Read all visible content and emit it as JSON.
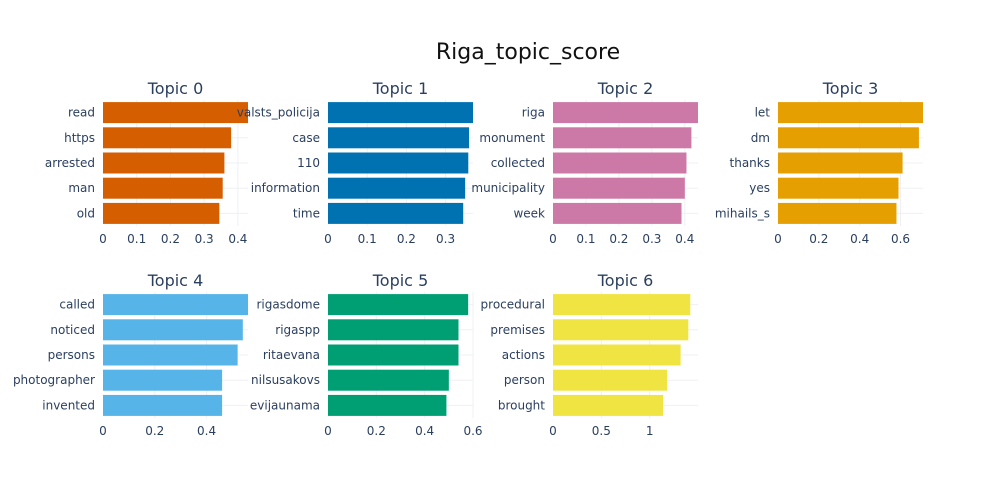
{
  "title": "Riga_topic_score",
  "chart_data": [
    {
      "type": "bar",
      "orientation": "horizontal",
      "title": "Topic 0",
      "color": "#D55E00",
      "categories": [
        "read",
        "https",
        "arrested",
        "man",
        "old"
      ],
      "values": [
        0.43,
        0.38,
        0.36,
        0.355,
        0.345
      ],
      "xlim": [
        0,
        0.43
      ],
      "xticks": [
        0,
        0.1,
        0.2,
        0.3,
        0.4
      ],
      "xtick_labels": [
        "0",
        "0.1",
        "0.2",
        "0.3",
        "0.4"
      ],
      "grid": true
    },
    {
      "type": "bar",
      "orientation": "horizontal",
      "title": "Topic 1",
      "color": "#0072B2",
      "categories": [
        "valsts_policija",
        "case",
        "110",
        "information",
        "time"
      ],
      "values": [
        0.37,
        0.36,
        0.358,
        0.35,
        0.345
      ],
      "xlim": [
        0,
        0.37
      ],
      "xticks": [
        0,
        0.1,
        0.2,
        0.3
      ],
      "xtick_labels": [
        "0",
        "0.1",
        "0.2",
        "0.3"
      ],
      "grid": true
    },
    {
      "type": "bar",
      "orientation": "horizontal",
      "title": "Topic 2",
      "color": "#CC79A7",
      "categories": [
        "riga",
        "monument",
        "collected",
        "municipality",
        "week"
      ],
      "values": [
        0.44,
        0.42,
        0.405,
        0.4,
        0.39
      ],
      "xlim": [
        0,
        0.44
      ],
      "xticks": [
        0,
        0.1,
        0.2,
        0.3,
        0.4
      ],
      "xtick_labels": [
        "0",
        "0.1",
        "0.2",
        "0.3",
        "0.4"
      ],
      "grid": true
    },
    {
      "type": "bar",
      "orientation": "horizontal",
      "title": "Topic 3",
      "color": "#E69F00",
      "categories": [
        "let",
        "dm",
        "thanks",
        "yes",
        "mihails_s"
      ],
      "values": [
        0.71,
        0.69,
        0.61,
        0.59,
        0.58
      ],
      "xlim": [
        0,
        0.71
      ],
      "xticks": [
        0,
        0.2,
        0.4,
        0.6
      ],
      "xtick_labels": [
        "0",
        "0.2",
        "0.4",
        "0.6"
      ],
      "grid": true
    },
    {
      "type": "bar",
      "orientation": "horizontal",
      "title": "Topic 4",
      "color": "#56B4E9",
      "categories": [
        "called",
        "noticed",
        "persons",
        "photographer",
        "invented"
      ],
      "values": [
        0.56,
        0.54,
        0.52,
        0.46,
        0.46
      ],
      "xlim": [
        0,
        0.56
      ],
      "xticks": [
        0,
        0.2,
        0.4
      ],
      "xtick_labels": [
        "0",
        "0.2",
        "0.4"
      ],
      "grid": true
    },
    {
      "type": "bar",
      "orientation": "horizontal",
      "title": "Topic 5",
      "color": "#009E73",
      "categories": [
        "rigasdome",
        "rigaspp",
        "ritaevana",
        "nilsusakovs",
        "evijaunama"
      ],
      "values": [
        0.58,
        0.54,
        0.54,
        0.5,
        0.49
      ],
      "xlim": [
        0,
        0.6
      ],
      "xticks": [
        0,
        0.2,
        0.4,
        0.6
      ],
      "xtick_labels": [
        "0",
        "0.2",
        "0.4",
        "0.6"
      ],
      "grid": true
    },
    {
      "type": "bar",
      "orientation": "horizontal",
      "title": "Topic 6",
      "color": "#F0E442",
      "categories": [
        "procedural",
        "premises",
        "actions",
        "person",
        "brought"
      ],
      "values": [
        1.42,
        1.4,
        1.32,
        1.18,
        1.14
      ],
      "xlim": [
        0,
        1.5
      ],
      "xticks": [
        0,
        0.5,
        1
      ],
      "xtick_labels": [
        "0",
        "0.5",
        "1"
      ],
      "grid": true
    }
  ]
}
